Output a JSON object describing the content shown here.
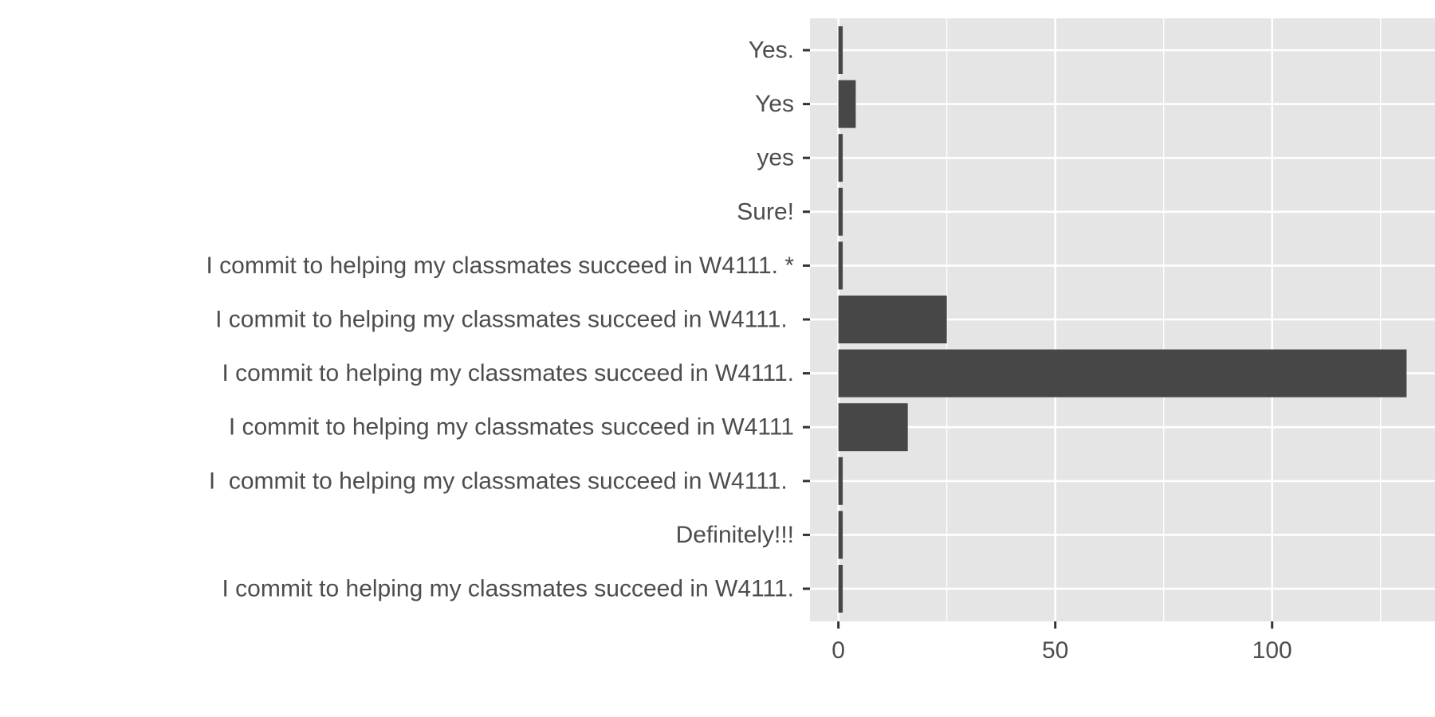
{
  "chart_data": {
    "type": "bar",
    "orientation": "horizontal",
    "title": "",
    "xlabel": "",
    "ylabel": "",
    "categories": [
      "Yes.",
      "Yes",
      "yes",
      "Sure!",
      "I commit to helping my classmates succeed in W4111. *",
      "I commit to helping my classmates succeed in W4111. ",
      "I commit to helping my classmates succeed in W4111.",
      "I commit to helping my classmates succeed in W4111",
      "I  commit to helping my classmates succeed in W4111. ",
      "Definitely!!!",
      "I commit to helping my classmates succeed in W4111."
    ],
    "values": [
      1,
      4,
      1,
      1,
      1,
      25,
      131,
      16,
      1,
      1,
      1
    ],
    "xlim": [
      -6.55,
      137.55
    ],
    "x_ticks": [
      0,
      50,
      100
    ],
    "x_tick_labels": [
      "0",
      "50",
      "100"
    ],
    "grid": true,
    "legend": "none",
    "colors": {
      "panel_background": "#e5e5e5",
      "grid": "#ffffff",
      "bar": "#474747",
      "text": "#4d4d4d",
      "ticks": "#333333"
    }
  }
}
